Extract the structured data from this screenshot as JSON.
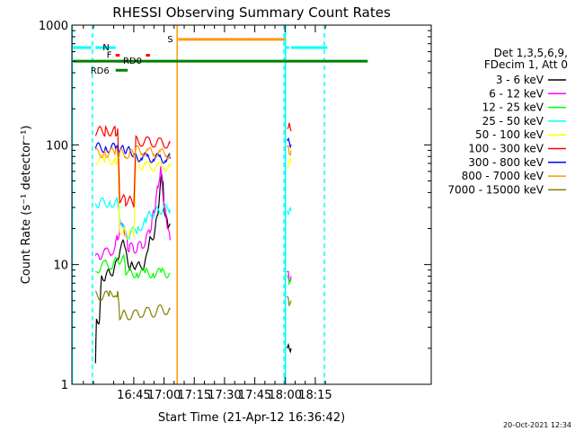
{
  "chart_data": {
    "type": "line",
    "title": "RHESSI Observing Summary Count Rates",
    "xlabel": "Start Time (21-Apr-12 16:36:42)",
    "ylabel": "Count Rate (s⁻¹ detector⁻¹)",
    "yscale": "log",
    "ylim": [
      1,
      1000
    ],
    "xlim_min": [
      -22.7,
      155.5
    ],
    "x_unit": "minutes after 16:37 UT",
    "xticks": [
      {
        "min": 8,
        "label": "16:45"
      },
      {
        "min": 23,
        "label": "17:00"
      },
      {
        "min": 38,
        "label": "17:15"
      },
      {
        "min": 53,
        "label": "17:30"
      },
      {
        "min": 68,
        "label": "17:45"
      },
      {
        "min": 83,
        "label": "18:00"
      },
      {
        "min": 98,
        "label": "18:15"
      }
    ],
    "yticks": [
      {
        "value": 1,
        "label": "1"
      },
      {
        "value": 10,
        "label": "10"
      },
      {
        "value": 100,
        "label": "100"
      },
      {
        "value": 1000,
        "label": "1000"
      }
    ],
    "legend_title": [
      "Det 1,3,5,6,9,",
      "FDecim 1, Att 0"
    ],
    "legend_position": "right",
    "timestamp": "20-Oct-2021 12:34",
    "series": [
      {
        "name": "3 - 6 keV",
        "color": "#000000",
        "segments": [
          [
            [
              -11,
              1.5
            ],
            [
              -10.5,
              3.5
            ],
            [
              -9,
              3.5
            ],
            [
              -8,
              8
            ],
            [
              -6,
              8
            ],
            [
              -4,
              8.5
            ],
            [
              -2,
              9
            ],
            [
              0,
              10.5
            ],
            [
              1,
              13
            ],
            [
              3,
              15
            ],
            [
              4,
              14
            ],
            [
              5,
              10
            ],
            [
              6,
              9.5
            ],
            [
              7,
              10
            ],
            [
              9,
              10
            ],
            [
              11,
              9.5
            ],
            [
              13,
              10
            ],
            [
              14,
              11
            ],
            [
              15,
              14
            ],
            [
              16,
              16
            ],
            [
              18,
              18
            ],
            [
              19,
              22
            ],
            [
              20,
              28
            ],
            [
              21,
              40
            ],
            [
              21.8,
              62
            ],
            [
              22.5,
              45
            ],
            [
              23,
              30
            ],
            [
              24,
              24
            ],
            [
              25,
              22
            ],
            [
              26,
              22
            ]
          ],
          [
            [
              84,
              2
            ],
            [
              85,
              2
            ],
            [
              86,
              2
            ]
          ]
        ]
      },
      {
        "name": "6 - 12 keV",
        "color": "#ff00ff",
        "segments": [
          [
            [
              -11,
              11
            ],
            [
              -9,
              12
            ],
            [
              -6,
              12.5
            ],
            [
              -3,
              13
            ],
            [
              -1,
              14.5
            ],
            [
              0,
              17
            ],
            [
              1,
              20
            ],
            [
              3,
              21
            ],
            [
              4,
              18
            ],
            [
              5,
              14
            ],
            [
              6,
              14
            ],
            [
              8,
              13.5
            ],
            [
              10,
              14
            ],
            [
              12,
              14.5
            ],
            [
              14,
              16
            ],
            [
              16,
              19
            ],
            [
              17,
              23
            ],
            [
              18,
              28
            ],
            [
              19,
              35
            ],
            [
              20,
              45
            ],
            [
              21.3,
              65
            ],
            [
              22,
              48
            ],
            [
              23,
              32
            ],
            [
              24,
              25
            ],
            [
              25,
              20
            ],
            [
              26,
              16
            ]
          ],
          [
            [
              84,
              8
            ],
            [
              85,
              8
            ],
            [
              86,
              8
            ]
          ]
        ]
      },
      {
        "name": "12 - 25 keV",
        "color": "#00ff00",
        "segments": [
          [
            [
              -11,
              8
            ],
            [
              -9,
              9.5
            ],
            [
              -6,
              10
            ],
            [
              -3,
              10
            ],
            [
              -1,
              10.5
            ],
            [
              1,
              11
            ],
            [
              3,
              11
            ],
            [
              4,
              9
            ],
            [
              6,
              8.5
            ],
            [
              10,
              8.5
            ],
            [
              14,
              8.5
            ],
            [
              18,
              8.5
            ],
            [
              22,
              8.5
            ],
            [
              26,
              8.5
            ]
          ],
          [
            [
              84,
              7.5
            ],
            [
              85,
              7.5
            ],
            [
              86,
              7.5
            ]
          ]
        ]
      },
      {
        "name": "25 - 50 keV",
        "color": "#00ffff",
        "segments": [
          [
            [
              -11,
              32
            ],
            [
              -9,
              33
            ],
            [
              -4,
              33
            ],
            [
              0,
              33
            ],
            [
              1,
              24
            ],
            [
              3,
              22
            ],
            [
              4,
              18
            ],
            [
              6,
              18
            ],
            [
              10,
              20
            ],
            [
              14,
              23
            ],
            [
              16,
              26
            ],
            [
              18,
              27
            ],
            [
              20,
              28
            ],
            [
              22,
              29
            ],
            [
              26,
              29
            ]
          ],
          [
            [
              84,
              28
            ],
            [
              85,
              28
            ],
            [
              86,
              28
            ]
          ]
        ]
      },
      {
        "name": "50 - 100 keV",
        "color": "#ffff00",
        "segments": [
          [
            [
              -11,
              75
            ],
            [
              -6,
              75
            ],
            [
              -1,
              75
            ],
            [
              0,
              76
            ],
            [
              1,
              20
            ],
            [
              3,
              19
            ],
            [
              4,
              18
            ],
            [
              6,
              18
            ],
            [
              8,
              18
            ],
            [
              9,
              70
            ],
            [
              11,
              68
            ],
            [
              14,
              67
            ],
            [
              17,
              66
            ],
            [
              20,
              66
            ],
            [
              23,
              66
            ],
            [
              26,
              66
            ]
          ],
          [
            [
              84,
              70
            ],
            [
              85,
              70
            ],
            [
              86,
              70
            ]
          ]
        ]
      },
      {
        "name": "100 - 300 keV",
        "color": "#ff0000",
        "segments": [
          [
            [
              -11,
              130
            ],
            [
              -6,
              130
            ],
            [
              -1,
              130
            ],
            [
              0,
              125
            ],
            [
              1,
              36
            ],
            [
              3,
              35
            ],
            [
              4,
              34
            ],
            [
              6,
              34
            ],
            [
              8,
              33
            ],
            [
              9,
              108
            ],
            [
              12,
              107
            ],
            [
              15,
              106
            ],
            [
              18,
              105
            ],
            [
              21,
              104
            ],
            [
              24,
              103
            ],
            [
              26,
              103
            ]
          ],
          [
            [
              84,
              150
            ],
            [
              85,
              140
            ],
            [
              86,
              130
            ]
          ]
        ]
      },
      {
        "name": "300 - 800 keV",
        "color": "#0000ff",
        "segments": [
          [
            [
              -11,
              95
            ],
            [
              -6,
              95
            ],
            [
              -1,
              94
            ],
            [
              0,
              93
            ],
            [
              1,
              90
            ],
            [
              3,
              90
            ],
            [
              4,
              88
            ],
            [
              6,
              88
            ],
            [
              8,
              87
            ],
            [
              9,
              80
            ],
            [
              12,
              79
            ],
            [
              15,
              78
            ],
            [
              18,
              78
            ],
            [
              21,
              77
            ],
            [
              24,
              77
            ],
            [
              26,
              77
            ]
          ],
          [
            [
              84,
              110
            ],
            [
              85,
              105
            ],
            [
              86,
              100
            ]
          ]
        ]
      },
      {
        "name": "800 - 7000 keV",
        "color": "#ff9900",
        "segments": [
          [
            [
              -11,
              85
            ],
            [
              -6,
              86
            ],
            [
              -1,
              86
            ],
            [
              0,
              85
            ],
            [
              1,
              84
            ],
            [
              4,
              84
            ],
            [
              6,
              84
            ],
            [
              8,
              83
            ],
            [
              9,
              90
            ],
            [
              12,
              88
            ],
            [
              15,
              87
            ],
            [
              18,
              86
            ],
            [
              21,
              85
            ],
            [
              24,
              84
            ],
            [
              26,
              84
            ]
          ],
          [
            [
              84,
              90
            ],
            [
              85,
              90
            ],
            [
              86,
              90
            ]
          ]
        ]
      },
      {
        "name": "7000 - 15000 keV",
        "color": "#808000",
        "segments": [
          [
            [
              -11,
              5.5
            ],
            [
              -8,
              5.5
            ],
            [
              -4,
              5.5
            ],
            [
              -1,
              6
            ],
            [
              0,
              5.5
            ],
            [
              1,
              3.8
            ],
            [
              3,
              3.8
            ],
            [
              6,
              3.8
            ],
            [
              9,
              3.8
            ],
            [
              12,
              4
            ],
            [
              15,
              4
            ],
            [
              18,
              4
            ],
            [
              21,
              4.2
            ],
            [
              24,
              4.2
            ],
            [
              26,
              4.2
            ]
          ],
          [
            [
              84,
              5
            ],
            [
              85,
              5
            ],
            [
              86,
              5
            ]
          ]
        ]
      }
    ],
    "state_bars": [
      {
        "label": "N",
        "color": "#00ffff",
        "y": 650,
        "segments": [
          [
            -22,
            -13
          ],
          [
            -11,
            -1
          ],
          [
            83,
            85
          ],
          [
            86,
            104
          ]
        ]
      },
      {
        "label": "",
        "color": "#008000",
        "y": 500,
        "segments": [
          [
            -22,
            124
          ]
        ]
      },
      {
        "label": "F",
        "color": "#ff0000",
        "y": 560,
        "segments": [
          [
            -1,
            1
          ],
          [
            14,
            16
          ]
        ]
      },
      {
        "label": "RD0",
        "color": "#008000",
        "y": 500,
        "segments": [
          [
            0,
            5
          ]
        ]
      },
      {
        "label": "RD6",
        "color": "#008000",
        "y": 420,
        "segments": [
          [
            -1,
            5
          ]
        ]
      },
      {
        "label": "S",
        "color": "#ff9900",
        "y": 760,
        "segments": [
          [
            30,
            83
          ]
        ]
      }
    ],
    "vlines": [
      {
        "x": -22.5,
        "color": "#00ffff",
        "style": "solid"
      },
      {
        "x": -12.5,
        "color": "#00ffff",
        "style": "dashed"
      },
      {
        "x": 29.5,
        "color": "#ff9900",
        "style": "solid"
      },
      {
        "x": 82.5,
        "color": "#00ffff",
        "style": "dashed"
      },
      {
        "x": 83.2,
        "color": "#00ffff",
        "style": "solid"
      },
      {
        "x": 102.5,
        "color": "#00ffff",
        "style": "dashed"
      }
    ]
  }
}
